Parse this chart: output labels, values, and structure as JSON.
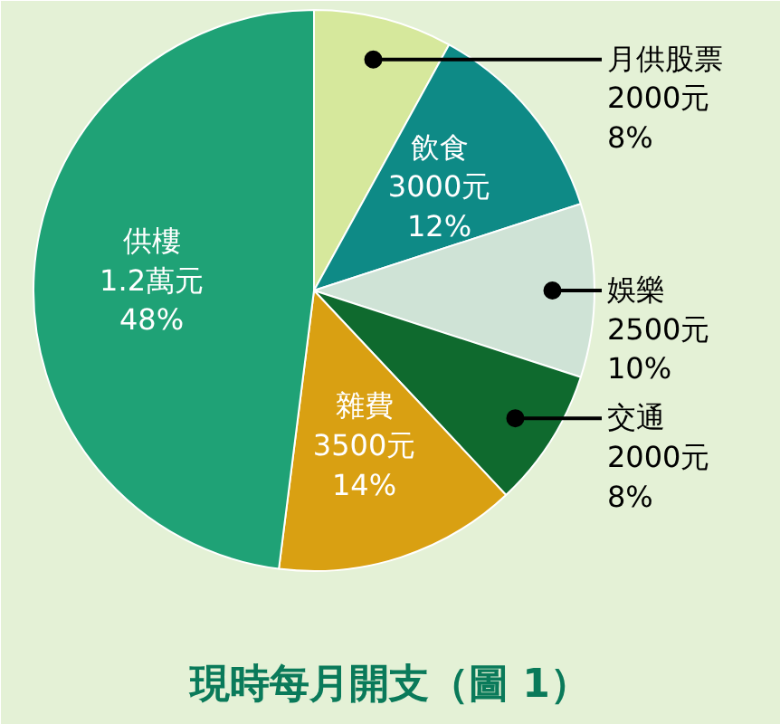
{
  "chart_data": {
    "type": "pie",
    "title": "現時每月開支（圖 1）",
    "categories": [
      "月供股票",
      "飲食",
      "娛樂",
      "交通",
      "雜費",
      "供樓"
    ],
    "values": [
      8,
      12,
      10,
      8,
      14,
      48
    ],
    "value_labels": [
      "2000元\n8%",
      "3000元\n12%",
      "2500元\n10%",
      "2000元\n8%",
      "3500元\n14%",
      "1.2萬元\n48%"
    ],
    "colors": [
      "#d6e89c",
      "#0e8a86",
      "#cfe3d6",
      "#0f6a2e",
      "#d9a012",
      "#1fa276"
    ]
  }
}
